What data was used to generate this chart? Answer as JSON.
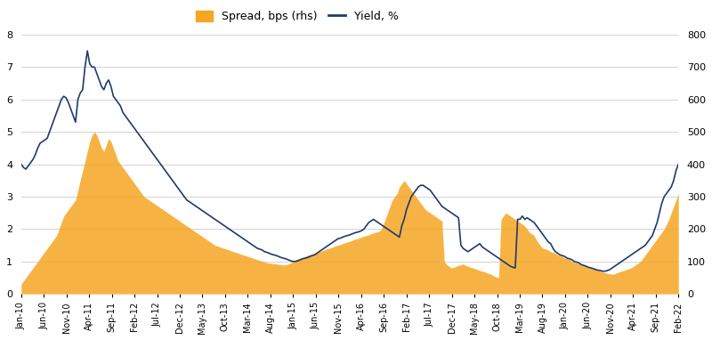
{
  "legend_labels": [
    "Spread, bps (rhs)",
    "Yield, %"
  ],
  "yield_color": "#1F3A6E",
  "spread_color": "#F5A623",
  "yleft_min": 0,
  "yleft_max": 8,
  "yright_min": 0,
  "yright_max": 800,
  "yticks_left": [
    0,
    1,
    2,
    3,
    4,
    5,
    6,
    7,
    8
  ],
  "yticks_right": [
    0,
    100,
    200,
    300,
    400,
    500,
    600,
    700,
    800
  ],
  "background_color": "#FFFFFF",
  "grid_color": "#CCCCCC",
  "tick_labels": [
    "Jan-10",
    "Jun-10",
    "Nov-10",
    "Apr-11",
    "Sep-11",
    "Feb-12",
    "Jul-12",
    "Dec-12",
    "May-13",
    "Oct-13",
    "Mar-14",
    "Aug-14",
    "Jan-15",
    "Jun-15",
    "Nov-15",
    "Apr-16",
    "Sep-16",
    "Feb-17",
    "Jul-17",
    "Dec-17",
    "May-18",
    "Oct-18",
    "Mar-19",
    "Aug-19",
    "Jan-20",
    "Jun-20",
    "Nov-20",
    "Apr-21",
    "Sep-21",
    "Feb-22"
  ],
  "yield_data": [
    4.0,
    3.9,
    3.85,
    3.95,
    4.05,
    4.15,
    4.3,
    4.5,
    4.65,
    4.7,
    4.75,
    4.8,
    5.0,
    5.2,
    5.4,
    5.6,
    5.8,
    6.0,
    6.1,
    6.05,
    5.9,
    5.7,
    5.5,
    5.3,
    6.0,
    6.2,
    6.3,
    7.0,
    7.5,
    7.1,
    7.0,
    7.0,
    6.8,
    6.6,
    6.4,
    6.3,
    6.5,
    6.6,
    6.4,
    6.1,
    6.0,
    5.9,
    5.8,
    5.6,
    5.5,
    5.4,
    5.3,
    5.2,
    5.1,
    5.0,
    4.9,
    4.8,
    4.7,
    4.6,
    4.5,
    4.4,
    4.3,
    4.2,
    4.1,
    4.0,
    3.9,
    3.8,
    3.7,
    3.6,
    3.5,
    3.4,
    3.3,
    3.2,
    3.1,
    3.0,
    2.9,
    2.85,
    2.8,
    2.75,
    2.7,
    2.65,
    2.6,
    2.55,
    2.5,
    2.45,
    2.4,
    2.35,
    2.3,
    2.25,
    2.2,
    2.15,
    2.1,
    2.05,
    2.0,
    1.95,
    1.9,
    1.85,
    1.8,
    1.75,
    1.7,
    1.65,
    1.6,
    1.55,
    1.5,
    1.45,
    1.4,
    1.38,
    1.35,
    1.3,
    1.28,
    1.25,
    1.22,
    1.2,
    1.18,
    1.15,
    1.12,
    1.1,
    1.08,
    1.05,
    1.02,
    1.0,
    1.0,
    1.02,
    1.05,
    1.08,
    1.1,
    1.12,
    1.15,
    1.18,
    1.2,
    1.25,
    1.3,
    1.35,
    1.4,
    1.45,
    1.5,
    1.55,
    1.6,
    1.65,
    1.7,
    1.72,
    1.75,
    1.78,
    1.8,
    1.82,
    1.85,
    1.88,
    1.9,
    1.92,
    1.95,
    2.0,
    2.1,
    2.2,
    2.25,
    2.3,
    2.25,
    2.2,
    2.15,
    2.1,
    2.05,
    2.0,
    1.95,
    1.9,
    1.85,
    1.8,
    1.75,
    2.1,
    2.3,
    2.6,
    2.8,
    3.0,
    3.1,
    3.2,
    3.3,
    3.35,
    3.35,
    3.3,
    3.25,
    3.2,
    3.1,
    3.0,
    2.9,
    2.8,
    2.7,
    2.65,
    2.6,
    2.55,
    2.5,
    2.45,
    2.4,
    2.35,
    1.5,
    1.4,
    1.35,
    1.3,
    1.35,
    1.4,
    1.45,
    1.5,
    1.55,
    1.45,
    1.4,
    1.35,
    1.3,
    1.25,
    1.2,
    1.15,
    1.1,
    1.05,
    1.0,
    0.95,
    0.9,
    0.85,
    0.82,
    0.8,
    2.3,
    2.3,
    2.4,
    2.3,
    2.35,
    2.3,
    2.25,
    2.2,
    2.1,
    2.0,
    1.9,
    1.8,
    1.7,
    1.6,
    1.55,
    1.4,
    1.3,
    1.25,
    1.2,
    1.18,
    1.15,
    1.1,
    1.08,
    1.05,
    1.0,
    0.98,
    0.95,
    0.9,
    0.88,
    0.85,
    0.82,
    0.8,
    0.78,
    0.75,
    0.73,
    0.72,
    0.7,
    0.7,
    0.72,
    0.75,
    0.8,
    0.85,
    0.9,
    0.95,
    1.0,
    1.05,
    1.1,
    1.15,
    1.2,
    1.25,
    1.3,
    1.35,
    1.4,
    1.45,
    1.5,
    1.6,
    1.7,
    1.8,
    2.0,
    2.2,
    2.5,
    2.8,
    3.0,
    3.1,
    3.2,
    3.3,
    3.5,
    3.8,
    4.0
  ],
  "spread_data": [
    30,
    40,
    50,
    60,
    70,
    80,
    90,
    100,
    110,
    120,
    130,
    140,
    150,
    160,
    170,
    180,
    200,
    220,
    240,
    250,
    260,
    270,
    280,
    290,
    320,
    350,
    380,
    410,
    440,
    470,
    490,
    500,
    490,
    470,
    450,
    440,
    460,
    480,
    470,
    450,
    430,
    410,
    400,
    390,
    380,
    370,
    360,
    350,
    340,
    330,
    320,
    310,
    300,
    295,
    290,
    285,
    280,
    275,
    270,
    265,
    260,
    255,
    250,
    245,
    240,
    235,
    230,
    225,
    220,
    215,
    210,
    205,
    200,
    195,
    190,
    185,
    180,
    175,
    170,
    165,
    160,
    155,
    150,
    148,
    145,
    142,
    140,
    138,
    135,
    132,
    130,
    128,
    125,
    122,
    120,
    118,
    115,
    113,
    110,
    108,
    105,
    103,
    100,
    98,
    96,
    95,
    94,
    93,
    92,
    91,
    90,
    89,
    90,
    92,
    95,
    100,
    105,
    108,
    110,
    112,
    115,
    118,
    120,
    122,
    125,
    128,
    130,
    132,
    135,
    138,
    140,
    142,
    145,
    148,
    150,
    152,
    155,
    158,
    160,
    162,
    165,
    168,
    170,
    172,
    175,
    178,
    180,
    182,
    185,
    188,
    190,
    192,
    195,
    210,
    230,
    250,
    270,
    290,
    300,
    310,
    330,
    340,
    350,
    340,
    330,
    320,
    310,
    300,
    290,
    280,
    270,
    260,
    255,
    250,
    245,
    240,
    235,
    230,
    225,
    100,
    90,
    85,
    80,
    82,
    85,
    88,
    90,
    92,
    88,
    85,
    82,
    80,
    78,
    75,
    72,
    70,
    68,
    65,
    62,
    60,
    55,
    52,
    50,
    230,
    240,
    250,
    245,
    240,
    235,
    230,
    225,
    220,
    215,
    210,
    200,
    190,
    185,
    180,
    165,
    155,
    145,
    140,
    138,
    135,
    130,
    128,
    125,
    120,
    118,
    115,
    110,
    108,
    105,
    100,
    98,
    95,
    92,
    90,
    88,
    85,
    82,
    80,
    78,
    75,
    72,
    70,
    68,
    65,
    63,
    62,
    60,
    62,
    65,
    68,
    70,
    72,
    75,
    78,
    80,
    85,
    90,
    95,
    100,
    110,
    120,
    130,
    140,
    150,
    160,
    170,
    180,
    190,
    200,
    215,
    230,
    250,
    270,
    290,
    310
  ]
}
